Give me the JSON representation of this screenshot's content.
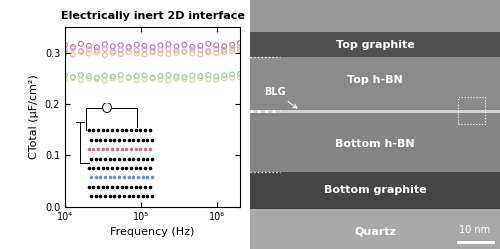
{
  "chart_data": {
    "type": "scatter",
    "title": "Electrically inert 2D interface",
    "x_label": "Frequency (Hz)",
    "y_label": "CTotal (μF/cm²)",
    "log": "x",
    "marker": "o",
    "tick_labels": true,
    "xlim": [
      10000,
      2000000
    ],
    "xticks": [
      {
        "value": 10000,
        "label": "10⁴"
      },
      {
        "value": 100000,
        "label": "10⁵"
      },
      {
        "value": 1000000,
        "label": "10⁶"
      }
    ],
    "ylim": [
      0.0,
      0.35
    ],
    "yticks": [
      0.0,
      0.1,
      0.2,
      0.3
    ],
    "x": [
      10000,
      12700,
      16200,
      20600,
      26200,
      33400,
      42500,
      54100,
      68800,
      87600,
      111000,
      142000,
      180000,
      229000,
      292000,
      371000,
      472000,
      601000,
      765000,
      973000,
      1240000,
      1580000,
      2000000
    ],
    "series": [
      {
        "color": "#9b7fc8",
        "values": [
          0.316,
          0.312,
          0.318,
          0.314,
          0.311,
          0.317,
          0.313,
          0.315,
          0.312,
          0.316,
          0.314,
          0.311,
          0.315,
          0.317,
          0.313,
          0.316,
          0.312,
          0.314,
          0.318,
          0.315,
          0.313,
          0.316,
          0.319
        ]
      },
      {
        "color": "#e8a0b8",
        "values": [
          0.306,
          0.309,
          0.304,
          0.307,
          0.305,
          0.308,
          0.303,
          0.306,
          0.309,
          0.305,
          0.307,
          0.304,
          0.306,
          0.308,
          0.305,
          0.303,
          0.307,
          0.306,
          0.304,
          0.308,
          0.306,
          0.309,
          0.311
        ]
      },
      {
        "color": "#f0b880",
        "values": [
          0.3,
          0.297,
          0.302,
          0.299,
          0.301,
          0.296,
          0.3,
          0.298,
          0.302,
          0.299,
          0.297,
          0.301,
          0.299,
          0.298,
          0.3,
          0.302,
          0.299,
          0.297,
          0.301,
          0.3,
          0.302,
          0.304,
          0.306
        ]
      },
      {
        "color": "#9ec9a0",
        "values": [
          0.256,
          0.253,
          0.257,
          0.255,
          0.252,
          0.256,
          0.254,
          0.257,
          0.253,
          0.255,
          0.256,
          0.252,
          0.255,
          0.257,
          0.254,
          0.253,
          0.256,
          0.255,
          0.257,
          0.254,
          0.256,
          0.258,
          0.259
        ]
      },
      {
        "color": "#d8d49a",
        "values": [
          0.248,
          0.251,
          0.247,
          0.25,
          0.249,
          0.246,
          0.25,
          0.248,
          0.251,
          0.247,
          0.249,
          0.25,
          0.248,
          0.246,
          0.25,
          0.249,
          0.247,
          0.251,
          0.249,
          0.248,
          0.25,
          0.252,
          0.253
        ]
      }
    ]
  },
  "image": {
    "labels": [
      "Top graphite",
      "Top h-BN",
      "BLG",
      "Bottom h-BN",
      "Bottom graphite",
      "Quartz"
    ],
    "scale_bar": "10 nm"
  }
}
